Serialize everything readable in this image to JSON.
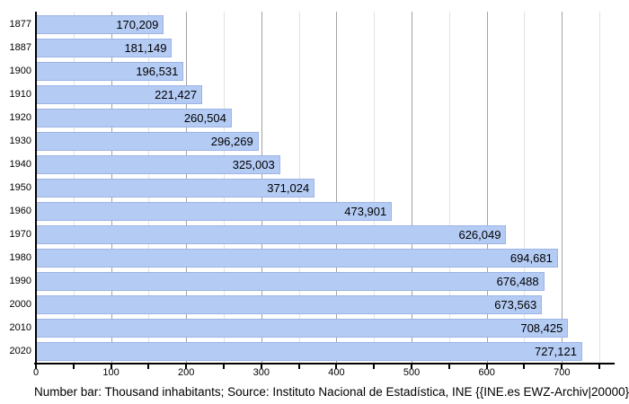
{
  "chart_data": {
    "type": "bar",
    "orientation": "horizontal",
    "title": "",
    "categories": [
      "1877",
      "1887",
      "1900",
      "1910",
      "1920",
      "1930",
      "1940",
      "1950",
      "1960",
      "1970",
      "1980",
      "1990",
      "2000",
      "2010",
      "2020"
    ],
    "values": [
      170209,
      181149,
      196531,
      221427,
      260504,
      296269,
      325003,
      371024,
      473901,
      626049,
      694681,
      676488,
      673563,
      708425,
      727121
    ],
    "value_labels": [
      "170,209",
      "181,149",
      "196,531",
      "221,427",
      "260,504",
      "296,269",
      "325,003",
      "371,024",
      "473,901",
      "626,049",
      "694,681",
      "676,488",
      "673,563",
      "708,425",
      "727,121"
    ],
    "x_axis": {
      "unit": "thousand inhabitants",
      "tick_labels": [
        "0",
        "100",
        "200",
        "300",
        "400",
        "500",
        "600",
        "700"
      ],
      "major_tick_step": 100,
      "minor_tick_step": 50,
      "xlim": [
        0,
        769
      ]
    },
    "ylabel": "",
    "xlabel": "",
    "grid": "vertical, minor every 50 (light), major every 100 (gray)",
    "legend": "none",
    "caption": "Number bar: Thousand inhabitants; Source: Instituto Nacional de Estadística, INE {{INE.es EWZ-Archiv|20000}}",
    "colors": {
      "bar_fill": "#b4cbf4",
      "bar_border": "#9db3e6",
      "grid_major": "#a2a2a2",
      "grid_minor": "#e2e2e2",
      "axis": "#000000",
      "text": "#000000",
      "background": "#ffffff"
    }
  }
}
